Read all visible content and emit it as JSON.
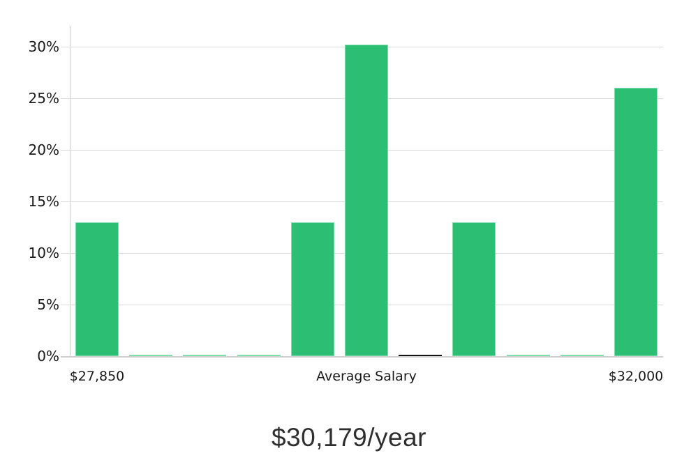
{
  "chart_data": {
    "type": "bar",
    "title": "$30,179/year",
    "categories": [
      "$27,850",
      "",
      "",
      "",
      "",
      "Average Salary",
      "",
      "",
      "",
      "",
      "$32,000"
    ],
    "values": [
      13,
      0.1,
      0.1,
      0.1,
      13,
      30.2,
      0.15,
      13,
      0.1,
      0.1,
      26
    ],
    "bar_colors": [
      "#2cbe72",
      "#2cbe72",
      "#2cbe72",
      "#2cbe72",
      "#2cbe72",
      "#2cbe72",
      "#141414",
      "#2cbe72",
      "#2cbe72",
      "#2cbe72",
      "#2cbe72"
    ],
    "highlight_bar_index": 6,
    "xlabel": "",
    "ylabel": "",
    "ylim": [
      0,
      31
    ],
    "yticks_percent": [
      0,
      5,
      10,
      15,
      20,
      25,
      30
    ],
    "ytick_labels": [
      "0%",
      "5%",
      "10%",
      "15%",
      "20%",
      "25%",
      "30%"
    ],
    "grid": "horizontal",
    "legend_position": "none"
  },
  "colors": {
    "bar_green": "#2cbe72",
    "bar_green_stroke": "#7fdfae",
    "bar_black": "#141414",
    "gridline": "#d9d9d9",
    "axis_line": "#cccccc",
    "tick_text": "#1a1a1a",
    "title_text": "#2e2e2e",
    "background": "#ffffff"
  }
}
